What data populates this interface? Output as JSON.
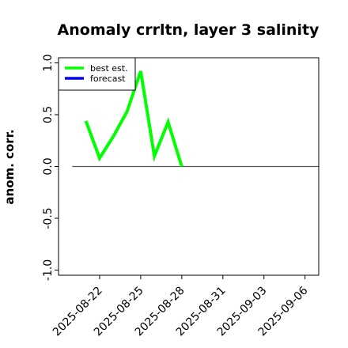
{
  "chart_data": {
    "type": "line",
    "title": "Anomaly crrltn, layer 3 salinity",
    "ylabel": "anom. corr.",
    "xlabel": "",
    "ylim": [
      -1.05,
      1.05
    ],
    "yticks": [
      -1.0,
      -0.5,
      0.0,
      0.5,
      1.0
    ],
    "ytick_labels": [
      "-1.0",
      "-0.5",
      "0.0",
      "0.5",
      "1.0"
    ],
    "xlim": [
      "2025-08-19",
      "2025-09-07"
    ],
    "xticks": [
      "2025-08-22",
      "2025-08-25",
      "2025-08-28",
      "2025-08-31",
      "2025-09-03",
      "2025-09-06"
    ],
    "highlighted_xtick": "2025-08-28",
    "highlight_color": "#228B22",
    "reference_line": {
      "y": 0.0,
      "from": "2025-08-20",
      "to": "2025-09-07",
      "color": "#555555"
    },
    "legend_position": "top-left",
    "series": [
      {
        "name": "best est.",
        "color": "#00ff00",
        "points": [
          {
            "x": "2025-08-21",
            "y": 0.44
          },
          {
            "x": "2025-08-22",
            "y": 0.08
          },
          {
            "x": "2025-08-23",
            "y": 0.29
          },
          {
            "x": "2025-08-24",
            "y": 0.53
          },
          {
            "x": "2025-08-25",
            "y": 0.92
          },
          {
            "x": "2025-08-26",
            "y": 0.1
          },
          {
            "x": "2025-08-27",
            "y": 0.43
          },
          {
            "x": "2025-08-28",
            "y": 0.0
          }
        ]
      },
      {
        "name": "forecast",
        "color": "#0000ff",
        "points": []
      }
    ]
  }
}
